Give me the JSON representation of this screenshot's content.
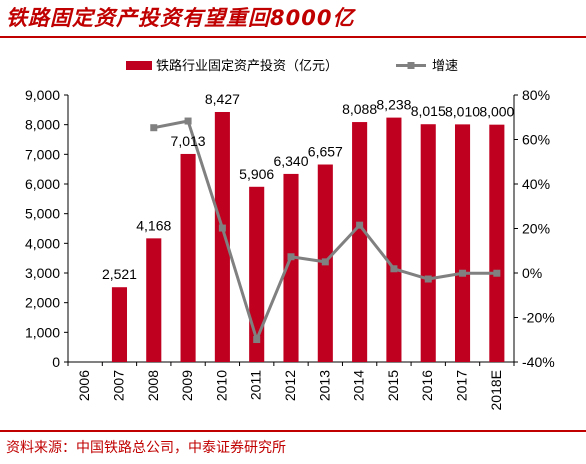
{
  "page": {
    "title": "铁路固定资产投资有望重回8000亿",
    "source": "资料来源：中国铁路总公司，中泰证券研究所"
  },
  "colors": {
    "bar": "#c0001f",
    "line": "#808080",
    "accent": "#c00000"
  },
  "chart_data": {
    "type": "bar",
    "categories": [
      "2006",
      "2007",
      "2008",
      "2009",
      "2010",
      "2011",
      "2012",
      "2013",
      "2014",
      "2015",
      "2016",
      "2017",
      "2018E"
    ],
    "series": [
      {
        "name": "铁路行业固定资产投资（亿元）",
        "type": "bar",
        "axis": "left",
        "values": [
          null,
          2521,
          4168,
          7013,
          8427,
          5906,
          6340,
          6657,
          8088,
          8238,
          8015,
          8010,
          8000
        ],
        "labels": [
          null,
          "2,521",
          "4,168",
          "7,013",
          "8,427",
          "5,906",
          "6,340",
          "6,657",
          "8,088",
          "8,238",
          "8,015",
          "8,010",
          "8,000"
        ]
      },
      {
        "name": "增速",
        "type": "line",
        "axis": "right",
        "values": [
          null,
          null,
          65.3,
          68.3,
          20.2,
          -29.9,
          7.3,
          5.0,
          21.5,
          1.9,
          -2.7,
          -0.1,
          -0.1
        ]
      }
    ],
    "y_left": {
      "min": 0,
      "max": 9000,
      "step": 1000,
      "ticks": [
        "0",
        "1,000",
        "2,000",
        "3,000",
        "4,000",
        "5,000",
        "6,000",
        "7,000",
        "8,000",
        "9,000"
      ]
    },
    "y_right": {
      "min": -40,
      "max": 80,
      "step": 20,
      "ticks": [
        "-40%",
        "-20%",
        "0%",
        "20%",
        "40%",
        "60%",
        "80%"
      ]
    },
    "legend_position": "top",
    "grid": false
  }
}
